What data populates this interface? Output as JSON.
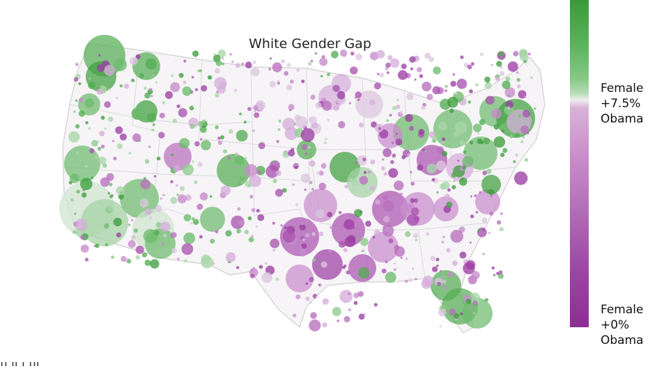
{
  "title": "White Gender Gap",
  "legend": {
    "top_label": "Female\n+7.5%\nObama",
    "bottom_label": "Female\n+0%\nObama",
    "color_high": "#3a9a3a",
    "color_mid": "#eeeeee",
    "color_low": "#8e2d95"
  },
  "caption_fragment": "fi               ll                                         l                  fil"
}
